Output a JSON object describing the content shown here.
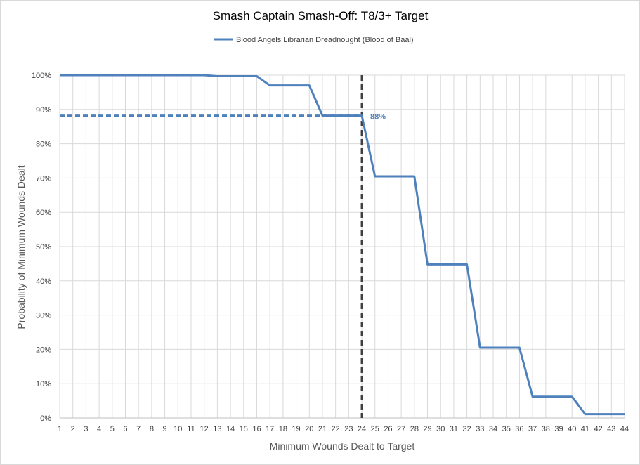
{
  "chart_data": {
    "type": "line",
    "title": "Smash Captain Smash-Off: T8/3+ Target",
    "xlabel": "Minimum Wounds Dealt  to Target",
    "ylabel": "Probability of Minimum Wounds Dealt",
    "x": [
      1,
      2,
      3,
      4,
      5,
      6,
      7,
      8,
      9,
      10,
      11,
      12,
      13,
      14,
      15,
      16,
      17,
      18,
      19,
      20,
      21,
      22,
      23,
      24,
      25,
      26,
      27,
      28,
      29,
      30,
      31,
      32,
      33,
      34,
      35,
      36,
      37,
      38,
      39,
      40,
      41,
      42,
      43,
      44
    ],
    "series": [
      {
        "name": "Blood Angels Librarian Dreadnought (Blood of Baal)",
        "color": "#4f81bd",
        "values": [
          100,
          100,
          100,
          100,
          100,
          100,
          100,
          100,
          100,
          100,
          100,
          100,
          99.7,
          99.7,
          99.7,
          99.7,
          97,
          97,
          97,
          97,
          88.2,
          88.2,
          88.2,
          88.2,
          70.5,
          70.5,
          70.5,
          70.5,
          44.8,
          44.8,
          44.8,
          44.8,
          20.5,
          20.5,
          20.5,
          20.5,
          6.2,
          6.2,
          6.2,
          6.2,
          1.1,
          1.1,
          1.1,
          1.1
        ]
      }
    ],
    "yticks": [
      "0%",
      "10%",
      "20%",
      "30%",
      "40%",
      "50%",
      "60%",
      "70%",
      "80%",
      "90%",
      "100%"
    ],
    "ylim": [
      0,
      100
    ],
    "xlim": [
      1,
      44
    ],
    "grid": true,
    "legend_position": "top",
    "reference": {
      "vertical_x": 24,
      "horizontal_y": 88.2,
      "label": "88%",
      "color_horizontal": "#4f81bd",
      "color_vertical": "#404040"
    }
  }
}
